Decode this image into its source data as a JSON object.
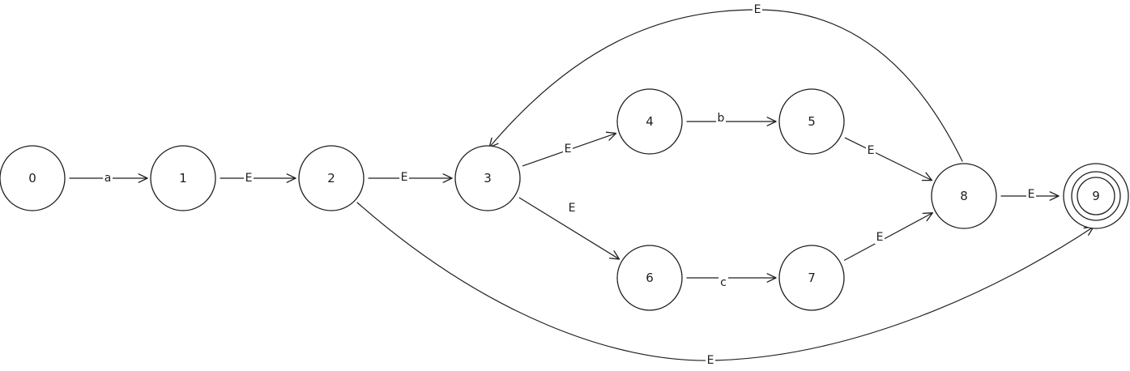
{
  "states": [
    {
      "id": "0",
      "label": "0"
    },
    {
      "id": "1",
      "label": "1"
    },
    {
      "id": "2",
      "label": "2"
    },
    {
      "id": "3",
      "label": "3"
    },
    {
      "id": "4",
      "label": "4"
    },
    {
      "id": "5",
      "label": "5"
    },
    {
      "id": "6",
      "label": "6"
    },
    {
      "id": "7",
      "label": "7"
    },
    {
      "id": "8",
      "label": "8"
    },
    {
      "id": "9",
      "label": "9",
      "accepting": true
    }
  ],
  "transitions": [
    {
      "from": "0",
      "to": "1",
      "label": "a"
    },
    {
      "from": "1",
      "to": "2",
      "label": "E"
    },
    {
      "from": "2",
      "to": "3",
      "label": "E"
    },
    {
      "from": "3",
      "to": "4",
      "label": "E"
    },
    {
      "from": "3",
      "to": "6",
      "label": "E"
    },
    {
      "from": "4",
      "to": "5",
      "label": "b"
    },
    {
      "from": "6",
      "to": "7",
      "label": "c"
    },
    {
      "from": "5",
      "to": "8",
      "label": "E"
    },
    {
      "from": "7",
      "to": "8",
      "label": "E"
    },
    {
      "from": "8",
      "to": "9",
      "label": "E"
    },
    {
      "from": "8",
      "to": "3",
      "label": "E"
    },
    {
      "from": "2",
      "to": "9",
      "label": "E"
    }
  ]
}
